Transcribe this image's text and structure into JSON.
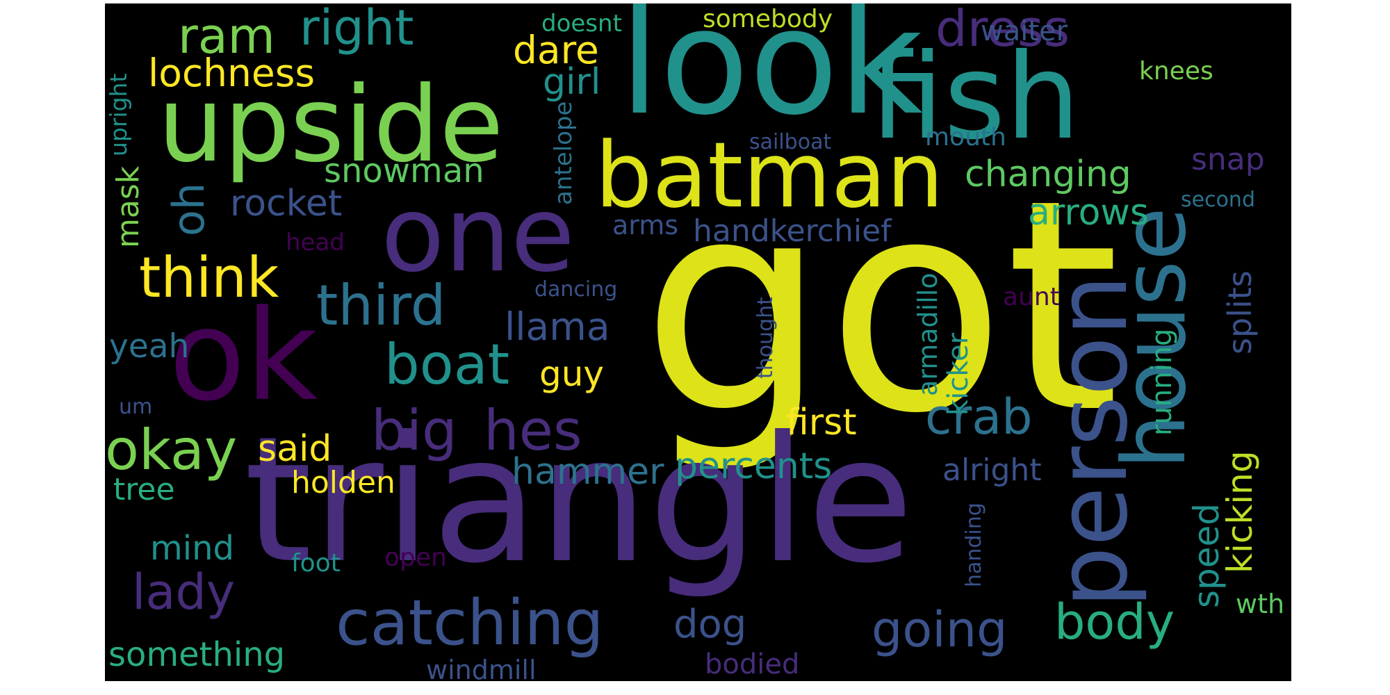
{
  "words": [
    {
      "text": "got",
      "color": "#dde318"
    },
    {
      "text": "triangle",
      "color": "#472d7b"
    },
    {
      "text": "look",
      "color": "#21918c"
    },
    {
      "text": "fish",
      "color": "#21918c"
    },
    {
      "text": "upside",
      "color": "#7ad151"
    },
    {
      "text": "one",
      "color": "#472d7b"
    },
    {
      "text": "ok",
      "color": "#440154"
    },
    {
      "text": "batman",
      "color": "#dde318"
    },
    {
      "text": "person",
      "color": "#3b528b"
    },
    {
      "text": "house",
      "color": "#2c728e"
    },
    {
      "text": "catching",
      "color": "#3b528b"
    },
    {
      "text": "big",
      "color": "#472d7b"
    },
    {
      "text": "hes",
      "color": "#472d7b"
    },
    {
      "text": "boat",
      "color": "#21918c"
    },
    {
      "text": "third",
      "color": "#2c728e"
    },
    {
      "text": "think",
      "color": "#fde725"
    },
    {
      "text": "okay",
      "color": "#7ad151"
    },
    {
      "text": "ram",
      "color": "#7ad151"
    },
    {
      "text": "right",
      "color": "#21918c"
    },
    {
      "text": "dress",
      "color": "#472d7b"
    },
    {
      "text": "crab",
      "color": "#2c728e"
    },
    {
      "text": "going",
      "color": "#3b528b"
    },
    {
      "text": "body",
      "color": "#28ae80"
    },
    {
      "text": "lady",
      "color": "#472d7b"
    },
    {
      "text": "lochness",
      "color": "#fde725"
    },
    {
      "text": "dare",
      "color": "#fde725"
    },
    {
      "text": "girl",
      "color": "#21918c"
    },
    {
      "text": "snowman",
      "color": "#5ec962"
    },
    {
      "text": "changing",
      "color": "#5ec962"
    },
    {
      "text": "rocket",
      "color": "#3b528b"
    },
    {
      "text": "oh",
      "color": "#2c728e"
    },
    {
      "text": "arrows",
      "color": "#28ae80"
    },
    {
      "text": "snap",
      "color": "#472d7b"
    },
    {
      "text": "waiter",
      "color": "#3b528b"
    },
    {
      "text": "somebody",
      "color": "#bddf26"
    },
    {
      "text": "doesnt",
      "color": "#28ae80"
    },
    {
      "text": "knees",
      "color": "#7ad151"
    },
    {
      "text": "mouth",
      "color": "#2c728e"
    },
    {
      "text": "sailboat",
      "color": "#3b528b"
    },
    {
      "text": "second",
      "color": "#2c728e"
    },
    {
      "text": "antelope",
      "color": "#2c728e"
    },
    {
      "text": "upright",
      "color": "#21918c"
    },
    {
      "text": "mask",
      "color": "#7ad151"
    },
    {
      "text": "handkerchief",
      "color": "#3b528b"
    },
    {
      "text": "arms",
      "color": "#3b528b"
    },
    {
      "text": "head",
      "color": "#440154"
    },
    {
      "text": "dancing",
      "color": "#3b528b"
    },
    {
      "text": "llama",
      "color": "#3b528b"
    },
    {
      "text": "aunt",
      "color": "#440154"
    },
    {
      "text": "guy",
      "color": "#fde725"
    },
    {
      "text": "yeah",
      "color": "#2c728e"
    },
    {
      "text": "first",
      "color": "#fde725"
    },
    {
      "text": "said",
      "color": "#fde725"
    },
    {
      "text": "um",
      "color": "#3b528b"
    },
    {
      "text": "hammer",
      "color": "#2c728e"
    },
    {
      "text": "percents",
      "color": "#21918c"
    },
    {
      "text": "alright",
      "color": "#3b528b"
    },
    {
      "text": "holden",
      "color": "#fde725"
    },
    {
      "text": "tree",
      "color": "#28ae80"
    },
    {
      "text": "mind",
      "color": "#21918c"
    },
    {
      "text": "foot",
      "color": "#21918c"
    },
    {
      "text": "open",
      "color": "#440154"
    },
    {
      "text": "dog",
      "color": "#3b528b"
    },
    {
      "text": "something",
      "color": "#28ae80"
    },
    {
      "text": "windmill",
      "color": "#3b528b"
    },
    {
      "text": "bodied",
      "color": "#472d7b"
    },
    {
      "text": "armadillo",
      "color": "#21918c"
    },
    {
      "text": "kicker",
      "color": "#21918c"
    },
    {
      "text": "thought",
      "color": "#3b528b"
    },
    {
      "text": "running",
      "color": "#28ae80"
    },
    {
      "text": "splits",
      "color": "#3b528b"
    },
    {
      "text": "kicking",
      "color": "#bddf26"
    },
    {
      "text": "speed",
      "color": "#21918c"
    },
    {
      "text": "wth",
      "color": "#5ec962"
    },
    {
      "text": "handing",
      "color": "#3b528b"
    }
  ]
}
